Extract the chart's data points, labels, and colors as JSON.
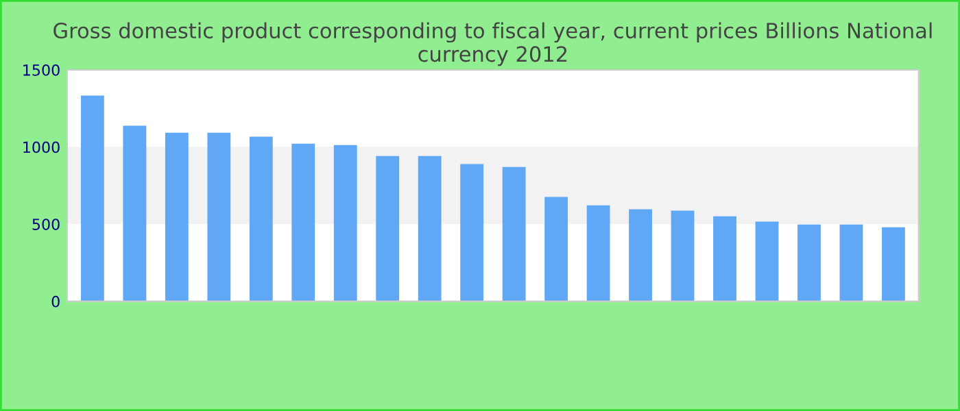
{
  "chart_data": {
    "type": "bar",
    "title": "Gross domestic product corresponding to fiscal year, current prices Billions National currency 2012",
    "categories": [
      null,
      null,
      null,
      null,
      null,
      null,
      null,
      null,
      null,
      null,
      null,
      null,
      null,
      null,
      null,
      null,
      null,
      null,
      null,
      null
    ],
    "values": [
      1333,
      1138,
      1093,
      1093,
      1067,
      1022,
      1013,
      942,
      942,
      889,
      871,
      676,
      622,
      596,
      587,
      551,
      516,
      498,
      498,
      480
    ],
    "color": "#60a8f5",
    "ylim": [
      0,
      1500
    ],
    "yticks": [
      0,
      500,
      1000,
      1500
    ],
    "bands": [
      {
        "axis": "y",
        "from": 500,
        "to": 1000,
        "color": "#f2f2f2"
      }
    ],
    "grid": false
  }
}
